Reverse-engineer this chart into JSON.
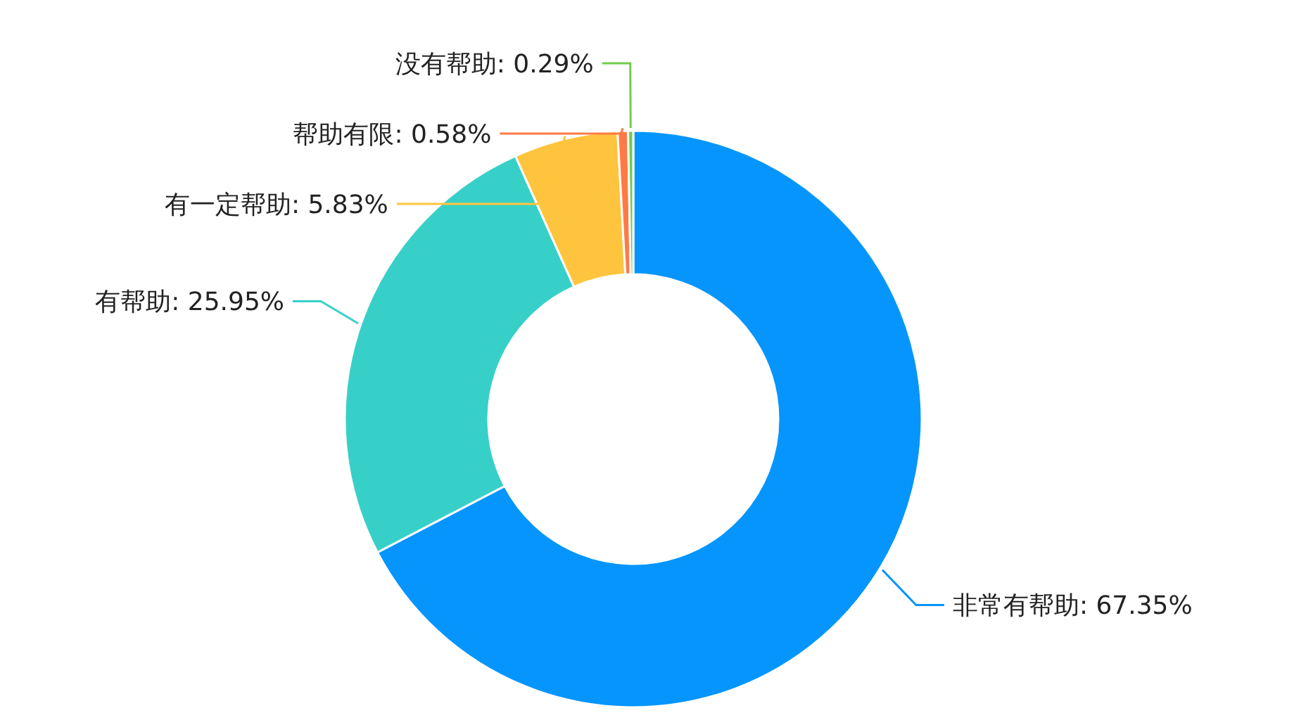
{
  "chart_data": {
    "type": "donut",
    "categories": [
      "非常有帮助",
      "有帮助",
      "有一定帮助",
      "帮助有限",
      "没有帮助"
    ],
    "values": [
      67.35,
      25.95,
      5.83,
      0.58,
      0.29
    ],
    "value_labels": [
      "67.35%",
      "25.95%",
      "5.83%",
      "0.58%",
      "0.29%"
    ],
    "colors": [
      "#0595fd",
      "#37d0c8",
      "#ffc43d",
      "#ff7a45",
      "#72cc4a"
    ],
    "legend": false
  }
}
